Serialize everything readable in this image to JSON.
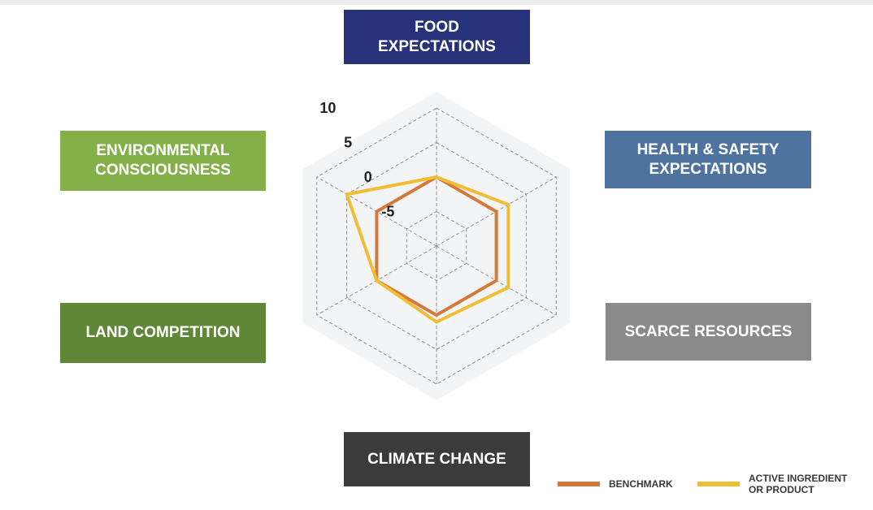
{
  "chart_data": {
    "type": "radar",
    "axes": [
      {
        "label": "FOOD\nEXPECTATIONS",
        "color": "#27327a"
      },
      {
        "label": "HEALTH & SAFETY\nEXPECTATIONS",
        "color": "#4f739f"
      },
      {
        "label": "SCARCE RESOURCES",
        "color": "#8a8a8a"
      },
      {
        "label": "CLIMATE CHANGE",
        "color": "#3b3b3b"
      },
      {
        "label": "LAND COMPETITION",
        "color": "#5e8737"
      },
      {
        "label": "ENVIRONMENTAL\nCONSCIOUSNESS",
        "color": "#84b04a"
      }
    ],
    "rlim": [
      -10,
      10
    ],
    "ticks": [
      10,
      5,
      0,
      -5
    ],
    "series": [
      {
        "name": "BENCHMARK",
        "color": "#d5793a",
        "values": [
          0,
          0,
          0,
          0,
          0,
          0
        ]
      },
      {
        "name": "ACTIVE INGREDIENT\nOR PRODUCT",
        "color": "#f2bd34",
        "values": [
          0,
          2,
          2,
          1,
          0,
          5
        ]
      }
    ],
    "grid": true,
    "legend": "bottom-right"
  }
}
